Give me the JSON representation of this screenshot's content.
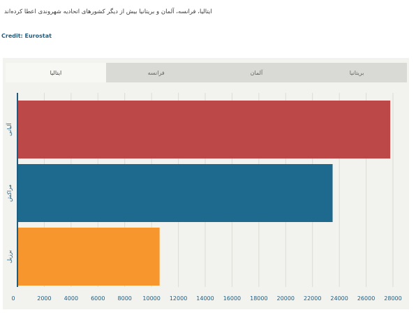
{
  "header": {
    "title": "ایتالیا، فرانسه، آلمان و بریتانیا بیش از دیگر کشورهای اتحادیه شهروندی اعطا کرده‌اند",
    "credit": "Credit: Eurostat"
  },
  "tabs": [
    {
      "label": "ایتالیا",
      "active": true
    },
    {
      "label": "فرانسه",
      "active": false
    },
    {
      "label": "آلمان",
      "active": false
    },
    {
      "label": "بریتانیا",
      "active": false
    }
  ],
  "colors": {
    "grid": "#dcdcd6",
    "axis": "#1f5c7e",
    "tick_text": "#1f5c7e",
    "category_text": "#1f5c7e"
  },
  "chart_data": {
    "type": "bar",
    "orientation": "horizontal",
    "categories": [
      "آلبانی",
      "مراکش",
      "برزیل"
    ],
    "values": [
      27800,
      23500,
      10600
    ],
    "bar_colors": [
      "#bd4848",
      "#1d6a8e",
      "#f6962c"
    ],
    "xlim": [
      0,
      28000
    ],
    "xticks": [
      0,
      2000,
      4000,
      6000,
      8000,
      10000,
      12000,
      14000,
      16000,
      18000,
      20000,
      22000,
      24000,
      26000,
      28000
    ],
    "grid": true
  }
}
